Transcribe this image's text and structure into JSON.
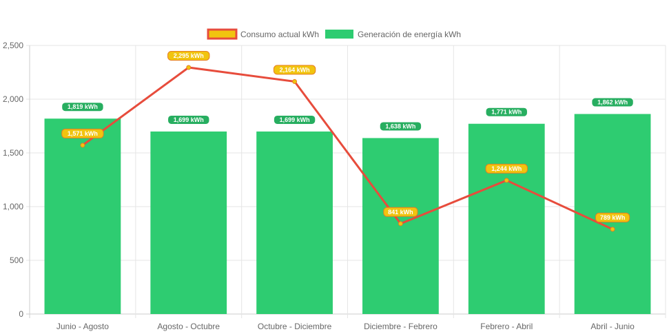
{
  "chart_data": {
    "type": "bar",
    "categories": [
      "Junio - Agosto",
      "Agosto - Octubre",
      "Octubre - Diciembre",
      "Diciembre - Febrero",
      "Febrero - Abril",
      "Abril - Junio"
    ],
    "series": [
      {
        "name": "Generación de energía kWh",
        "type": "bar",
        "color": "#2ecc71",
        "values": [
          1819,
          1699,
          1699,
          1638,
          1771,
          1862
        ],
        "labels": [
          "1,819 kWh",
          "1,699 kWh",
          "1,699 kWh",
          "1,638 kWh",
          "1,771 kWh",
          "1,862 kWh"
        ]
      },
      {
        "name": "Consumo actual kWh",
        "type": "line",
        "color": "#e74c3c",
        "point_color": "#f1c40f",
        "values": [
          1571,
          2295,
          2164,
          841,
          1244,
          789
        ],
        "labels": [
          "1,571 kWh",
          "2,295 kWh",
          "2,164 kWh",
          "841 kWh",
          "1,244 kWh",
          "789 kWh"
        ]
      }
    ],
    "y_ticks": [
      "0",
      "500",
      "1,000",
      "1,500",
      "2,000",
      "2,500"
    ],
    "ylim": [
      0,
      2500
    ],
    "grid": true,
    "legend_position": "top"
  }
}
